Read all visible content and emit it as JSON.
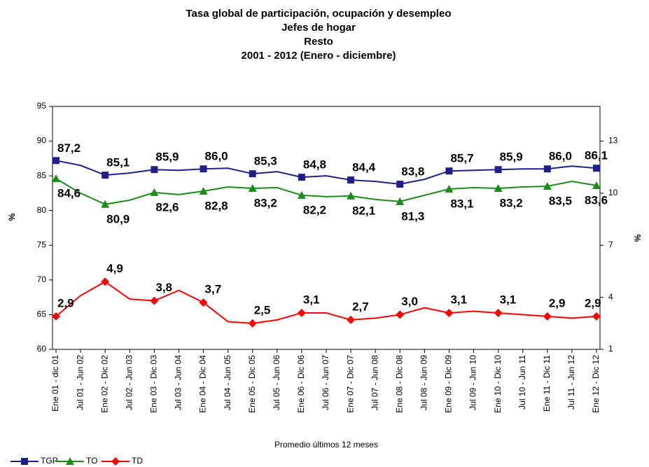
{
  "chart_data": {
    "type": "line",
    "title": [
      "Tasa global de participación, ocupación y desempleo",
      "Jefes de hogar",
      "Resto",
      "2001 - 2012 (Enero - diciembre)"
    ],
    "x_label": "Promedio últimos 12 meses",
    "y_label": "%",
    "y2_label": "%",
    "categories": [
      "Ene 01 - dic 01",
      "Jul 01 - Jun 02",
      "Ene 02 - Dic 02",
      "Jul 02 - Jun 03",
      "Ene 03 - Dic 03",
      "Jul 03 - Jun 04",
      "Ene 04 - Dic 04",
      "Jul 04 - Jun 05",
      "Ene 05 - Dic 05",
      "Jul 05 - Jun 06",
      "Ene 06 - Dic 06",
      "Jul 06 - Jun 07",
      "Ene 07 - Dic 07",
      "Jul 07 - Jun 08",
      "Ene 08 - Dic 08",
      "Jul 08 - Jun 09",
      "Ene 09 - Dic 09",
      "Jul 09 - Jun 10",
      "Ene 10 - Dic 10",
      "Jul 10 - Jun 11",
      "Ene 11 - Dic 11",
      "Jul 11 - Jun 12",
      "Ene 12 - Dic 12"
    ],
    "ylim": [
      60,
      95
    ],
    "yticks": [
      60,
      65,
      70,
      75,
      80,
      85,
      90,
      95
    ],
    "y2lim": [
      1,
      15
    ],
    "y2ticks": [
      1,
      4,
      7,
      10,
      13
    ],
    "legend": "bottom-left",
    "series": [
      {
        "name": "TGP",
        "color": "#1f1f8c",
        "marker": "square",
        "values": [
          87.2,
          86.5,
          85.1,
          85.4,
          85.9,
          85.8,
          86.0,
          86.1,
          85.3,
          85.6,
          84.8,
          85.0,
          84.4,
          84.2,
          83.8,
          84.5,
          85.7,
          85.8,
          85.9,
          86.0,
          86.0,
          86.4,
          86.1
        ],
        "value_labels": [
          "87,2",
          null,
          "85,1",
          null,
          "85,9",
          null,
          "86,0",
          null,
          "85,3",
          null,
          "84,8",
          null,
          "84,4",
          null,
          "83,8",
          null,
          "85,7",
          null,
          "85,9",
          null,
          "86,0",
          null,
          "86,1"
        ]
      },
      {
        "name": "TO",
        "color": "#1a8c1a",
        "marker": "triangle",
        "values": [
          84.6,
          82.5,
          80.9,
          81.5,
          82.6,
          82.3,
          82.8,
          83.4,
          83.2,
          83.3,
          82.2,
          82.0,
          82.1,
          81.6,
          81.3,
          82.2,
          83.1,
          83.3,
          83.2,
          83.4,
          83.5,
          84.2,
          83.6
        ],
        "value_labels": [
          "84,6",
          null,
          "80,9",
          null,
          "82,6",
          null,
          "82,8",
          null,
          "83,2",
          null,
          "82,2",
          null,
          "82,1",
          null,
          "81,3",
          null,
          "83,1",
          null,
          "83,2",
          null,
          "83,5",
          null,
          "83,6"
        ]
      },
      {
        "name": "TD",
        "color": "#ff0000",
        "marker": "diamond",
        "axis": "y2",
        "values": [
          2.9,
          4.1,
          4.9,
          3.9,
          3.8,
          4.4,
          3.7,
          2.6,
          2.5,
          2.7,
          3.1,
          3.1,
          2.7,
          2.8,
          3.0,
          3.4,
          3.1,
          3.2,
          3.1,
          3.0,
          2.9,
          2.8,
          2.9
        ],
        "value_labels": [
          "2,9",
          null,
          "4,9",
          null,
          "3,8",
          null,
          "3,7",
          null,
          "2,5",
          null,
          "3,1",
          null,
          "2,7",
          null,
          "3,0",
          null,
          "3,1",
          null,
          "3,1",
          null,
          "2,9",
          null,
          "2,9"
        ]
      }
    ]
  }
}
